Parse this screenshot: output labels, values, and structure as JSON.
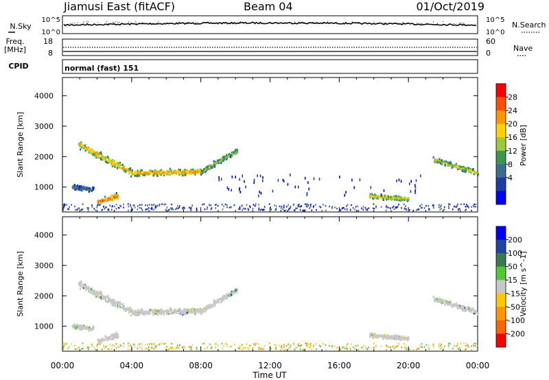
{
  "header": {
    "station": "Jiamusi East (fitACF)",
    "beam": "Beam 04",
    "date": "01/Oct/2019"
  },
  "left_labels": {
    "nsky": "N.Sky",
    "freq": "Freq.",
    "freq_unit": "[MHz]",
    "cpid": "CPID"
  },
  "right_labels": {
    "nsearch": "N.Search",
    "nave": "Nave"
  },
  "noise_axis": {
    "top": "10^5",
    "bottom": "10^0"
  },
  "freq_axis": {
    "left_ticks": [
      "18",
      "8"
    ],
    "right_ticks": [
      "60",
      "0"
    ]
  },
  "cpid_text": "normal (fast) 151",
  "colors": {
    "power_scale": [
      "#0000ff",
      "#1e3ca8",
      "#3c6e8c",
      "#3c9650",
      "#a0c83c",
      "#ffd200",
      "#ff9600",
      "#ff5000",
      "#ff0000"
    ],
    "velocity_scale": [
      "#0000ff",
      "#1e46a0",
      "#3c7850",
      "#50c832",
      "#c8c8c8",
      "#ffc800",
      "#ff9600",
      "#ff6400",
      "#ff0000"
    ]
  },
  "chart_data": [
    {
      "type": "heatmap",
      "name": "power-panel",
      "ylabel": "Slant Range [km]",
      "yticks": [
        1000,
        2000,
        3000,
        4000
      ],
      "ylim": [
        180,
        4600
      ],
      "xlim": [
        0,
        24
      ],
      "colorbar_label": "Power [dB]",
      "colorbar_ticks": [
        "4",
        "8",
        "12",
        "16",
        "20",
        "24",
        "28"
      ],
      "clim": [
        0,
        32
      ],
      "bands": [
        {
          "t0": 0.9,
          "t1": 4.0,
          "r_start": 2400,
          "r_end": 1450,
          "width": 320,
          "peak_db": 22
        },
        {
          "t0": 4.0,
          "t1": 8.0,
          "r_start": 1450,
          "r_end": 1500,
          "width": 260,
          "peak_db": 24
        },
        {
          "t0": 8.0,
          "t1": 10.1,
          "r_start": 1500,
          "r_end": 2200,
          "width": 250,
          "peak_db": 16
        },
        {
          "t0": 2.0,
          "t1": 3.2,
          "r_start": 500,
          "r_end": 700,
          "width": 260,
          "peak_db": 28
        },
        {
          "t0": 0.5,
          "t1": 1.8,
          "r_start": 1000,
          "r_end": 900,
          "width": 200,
          "peak_db": 10
        },
        {
          "t0": 17.7,
          "t1": 20.0,
          "r_start": 700,
          "r_end": 600,
          "width": 200,
          "peak_db": 20
        },
        {
          "t0": 21.4,
          "t1": 24.0,
          "r_start": 1900,
          "r_end": 1450,
          "width": 230,
          "peak_db": 18
        }
      ]
    },
    {
      "type": "heatmap",
      "name": "velocity-panel",
      "ylabel": "Slant Range [km]",
      "yticks": [
        1000,
        2000,
        3000,
        4000
      ],
      "ylim": [
        180,
        4600
      ],
      "xlim": [
        0,
        24
      ],
      "colorbar_label": "Velocity [m s^-1]",
      "colorbar_ticks": [
        "200",
        "100",
        "50",
        "15",
        "-15",
        "-50",
        "-100",
        "-200"
      ],
      "clim": [
        -250,
        250
      ],
      "xlabel": "Time UT",
      "xticks": [
        "00:00",
        "04:00",
        "08:00",
        "12:00",
        "16:00",
        "20:00",
        "00:00"
      ]
    }
  ]
}
